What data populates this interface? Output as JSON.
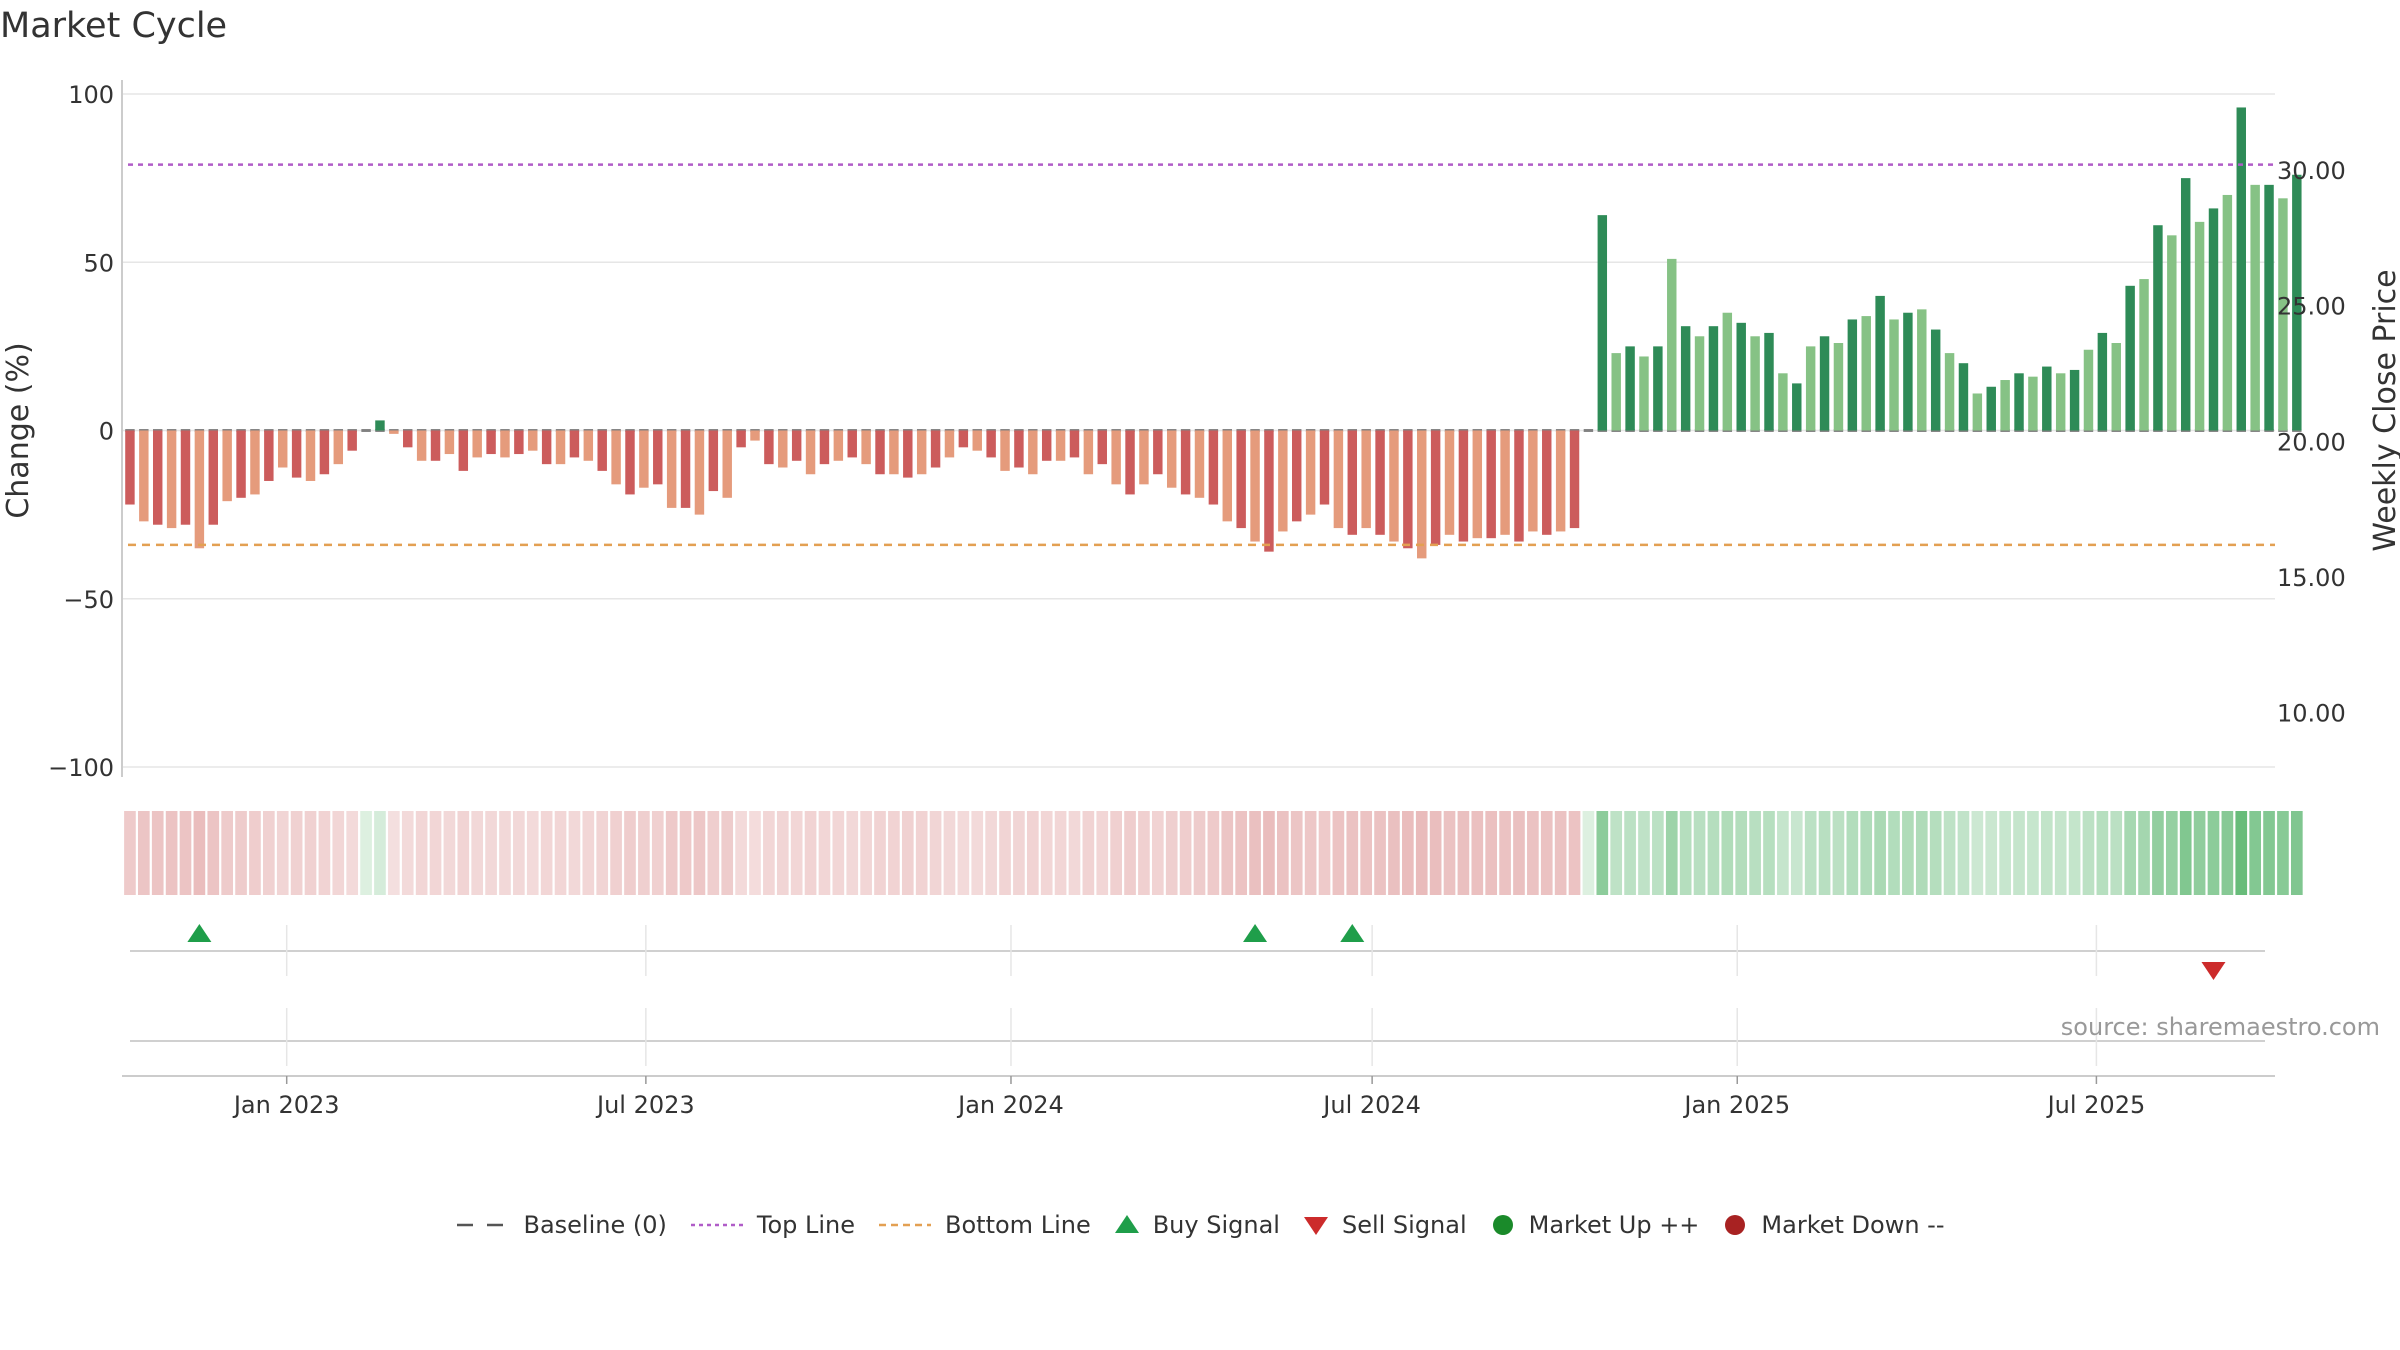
{
  "title": "Market Cycle",
  "source": "source: sharemaestro.com",
  "chart_data": {
    "type": "bar",
    "title": "Market Cycle",
    "ylabel": "Change (%)",
    "y2label": "Weekly Close Price",
    "ylim": [
      -100,
      100
    ],
    "yticks": [
      100,
      50,
      0,
      -50,
      -100
    ],
    "y2lim": [
      8.0,
      32.8
    ],
    "y2ticks": [
      "30.00",
      "25.00",
      "20.00",
      "15.00",
      "10.00"
    ],
    "grid": true,
    "x_range": [
      "2022-10-10",
      "2025-09-29"
    ],
    "x_ticks": [
      {
        "date": "2023-01-01",
        "label": "Jan 2023"
      },
      {
        "date": "2023-07-01",
        "label": "Jul 2023"
      },
      {
        "date": "2024-01-01",
        "label": "Jan 2024"
      },
      {
        "date": "2024-07-01",
        "label": "Jul 2024"
      },
      {
        "date": "2025-01-01",
        "label": "Jan 2025"
      },
      {
        "date": "2025-07-01",
        "label": "Jul 2025"
      }
    ],
    "first_week": "2022-10-14",
    "week_step_days": 7,
    "values": [
      -22,
      -27,
      -28,
      -29,
      -28,
      -35,
      -28,
      -21,
      -20,
      -19,
      -15,
      -11,
      -14,
      -15,
      -13,
      -10,
      -6,
      0,
      3,
      -1,
      -5,
      -9,
      -9,
      -7,
      -12,
      -8,
      -7,
      -8,
      -7,
      -6,
      -10,
      -10,
      -8,
      -9,
      -12,
      -16,
      -19,
      -17,
      -16,
      -23,
      -23,
      -25,
      -18,
      -20,
      -5,
      -3,
      -10,
      -11,
      -9,
      -13,
      -10,
      -9,
      -8,
      -10,
      -13,
      -13,
      -14,
      -13,
      -11,
      -8,
      -5,
      -6,
      -8,
      -12,
      -11,
      -13,
      -9,
      -9,
      -8,
      -13,
      -10,
      -16,
      -19,
      -16,
      -13,
      -17,
      -19,
      -20,
      -22,
      -27,
      -29,
      -33,
      -36,
      -30,
      -27,
      -25,
      -22,
      -29,
      -31,
      -29,
      -31,
      -33,
      -35,
      -38,
      -34,
      -31,
      -33,
      -32,
      -32,
      -31,
      -33,
      -30,
      -31,
      -30,
      -29,
      0,
      64,
      23,
      25,
      22,
      25,
      51,
      31,
      28,
      31,
      35,
      32,
      28,
      29,
      17,
      14,
      25,
      28,
      26,
      33,
      34,
      40,
      33,
      35,
      36,
      30,
      23,
      20,
      11,
      13,
      15,
      17,
      16,
      19,
      17,
      18,
      24,
      29,
      26,
      43,
      45,
      61,
      58,
      75,
      62,
      66,
      70,
      96,
      73,
      73,
      69,
      76
    ],
    "series": [
      {
        "name": "Baseline (0)",
        "type": "line",
        "style": "dashed",
        "color": "#555555",
        "y": 0
      },
      {
        "name": "Top Line",
        "type": "line",
        "style": "dotted",
        "color": "#b05cc8",
        "y": 79
      },
      {
        "name": "Bottom Line",
        "type": "line",
        "style": "dashed",
        "color": "#e3a052",
        "y": -34
      },
      {
        "name": "Buy Signal",
        "type": "scatter",
        "marker": "triangle-up",
        "color": "#1f9e4a",
        "dates": [
          "2022-11-18",
          "2024-05-03",
          "2024-06-21"
        ]
      },
      {
        "name": "Sell Signal",
        "type": "scatter",
        "marker": "triangle-down",
        "color": "#cc2b2b",
        "dates": [
          "2025-08-29"
        ]
      },
      {
        "name": "Market Up ++",
        "type": "scatter",
        "marker": "circle",
        "color": "#1a8a2a",
        "dates": []
      },
      {
        "name": "Market Down --",
        "type": "scatter",
        "marker": "circle",
        "color": "#a82222",
        "dates": []
      }
    ],
    "legend_position": "bottom-center"
  },
  "colors": {
    "up_dark": "#2e8b57",
    "up_light": "#86c285",
    "down_dark": "#cc5c5c",
    "down_light": "#e59b7c",
    "grid": "#e6e6e6"
  }
}
